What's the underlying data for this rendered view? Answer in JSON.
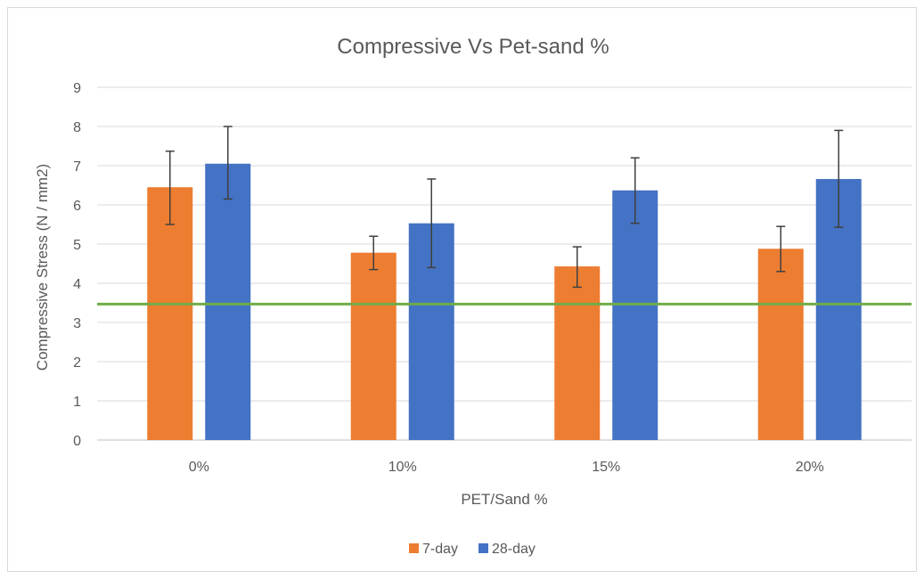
{
  "chart_data": {
    "type": "bar",
    "title": "Compressive Vs Pet-sand %",
    "xlabel": "PET/Sand %",
    "ylabel": "Compressive Stress (N / mm2)",
    "categories": [
      "0%",
      "10%",
      "15%",
      "20%"
    ],
    "ylim": [
      0,
      9
    ],
    "yticks": [
      0,
      1,
      2,
      3,
      4,
      5,
      6,
      7,
      8,
      9
    ],
    "grid": true,
    "legend_position": "bottom",
    "series": [
      {
        "name": "7-day",
        "color": "#ed7d31",
        "values": [
          6.45,
          4.78,
          4.43,
          4.88
        ],
        "error_low": [
          5.5,
          4.35,
          3.9,
          4.3
        ],
        "error_high": [
          7.37,
          5.2,
          4.93,
          5.45
        ]
      },
      {
        "name": "28-day",
        "color": "#4472c4",
        "values": [
          7.05,
          5.53,
          6.37,
          6.66
        ],
        "error_low": [
          6.15,
          4.4,
          5.53,
          5.43
        ],
        "error_high": [
          8.0,
          6.66,
          7.2,
          7.9
        ]
      }
    ],
    "reference_line": {
      "value": 3.47,
      "color": "#70ad47"
    },
    "colors": {
      "grid": "#d9d9d9",
      "axis": "#bfbfbf",
      "text": "#595959",
      "error_bar": "#404040"
    }
  }
}
